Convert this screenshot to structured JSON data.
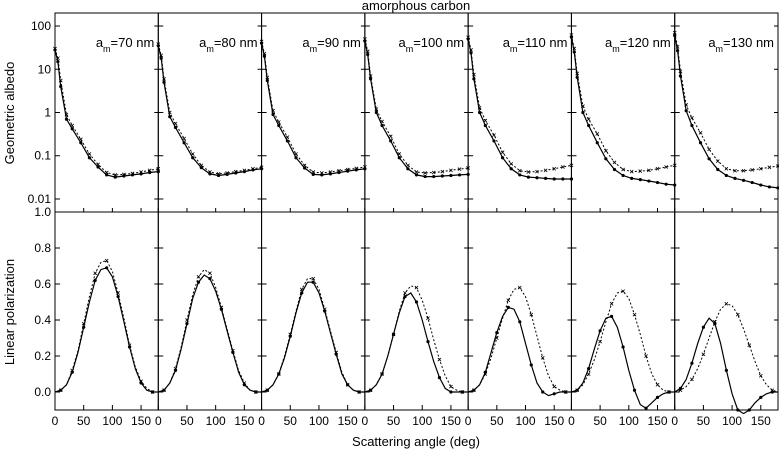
{
  "figure": {
    "title": "amorphous carbon",
    "xlabel": "Scattering angle (deg)",
    "ylabel_top": "Geometric albedo",
    "ylabel_bottom": "Linear polarization"
  },
  "chart_data": {
    "type": "line",
    "xlim": [
      0,
      180
    ],
    "x_ticks": [
      0,
      50,
      100,
      150
    ],
    "top_yscale": "log",
    "top_ylim": [
      0.005,
      200
    ],
    "top_y_ticks": [
      "100",
      "10",
      "1",
      "0.1",
      "0.01"
    ],
    "bottom_ylim": [
      -0.1,
      1.0
    ],
    "bottom_y_ticks": [
      "1.0",
      "0.8",
      "0.6",
      "0.4",
      "0.2",
      "0.0"
    ],
    "grid": false,
    "panels": [
      {
        "label_prefix": "a",
        "label_sub": "m",
        "label_value": "=70 nm",
        "albedo_x": [
          0,
          5,
          10,
          20,
          30,
          45,
          60,
          75,
          90,
          105,
          120,
          135,
          150,
          165,
          180
        ],
        "albedo_solid": [
          28,
          15,
          4,
          0.7,
          0.42,
          0.2,
          0.09,
          0.055,
          0.036,
          0.032,
          0.034,
          0.036,
          0.038,
          0.041,
          0.043
        ],
        "albedo_dotted": [
          30,
          18,
          5.5,
          0.9,
          0.5,
          0.24,
          0.11,
          0.063,
          0.041,
          0.036,
          0.037,
          0.039,
          0.042,
          0.046,
          0.05
        ],
        "pol_x": [
          0,
          10,
          20,
          30,
          40,
          50,
          60,
          70,
          80,
          90,
          100,
          110,
          120,
          130,
          140,
          150,
          160,
          170,
          180
        ],
        "pol_solid": [
          0,
          0.01,
          0.04,
          0.11,
          0.22,
          0.36,
          0.5,
          0.62,
          0.68,
          0.69,
          0.64,
          0.53,
          0.39,
          0.25,
          0.13,
          0.05,
          0.01,
          0,
          0
        ],
        "pol_dotted": [
          0,
          0.01,
          0.04,
          0.12,
          0.23,
          0.38,
          0.53,
          0.66,
          0.72,
          0.73,
          0.67,
          0.55,
          0.41,
          0.26,
          0.14,
          0.06,
          0.02,
          0,
          0
        ]
      },
      {
        "label_prefix": "a",
        "label_sub": "m",
        "label_value": "=80 nm",
        "albedo_x": [
          0,
          5,
          10,
          20,
          30,
          45,
          60,
          75,
          90,
          105,
          120,
          135,
          150,
          165,
          180
        ],
        "albedo_solid": [
          35,
          18,
          5,
          0.8,
          0.45,
          0.2,
          0.09,
          0.053,
          0.038,
          0.035,
          0.037,
          0.04,
          0.043,
          0.047,
          0.05
        ],
        "albedo_dotted": [
          38,
          21,
          6,
          1,
          0.55,
          0.25,
          0.11,
          0.06,
          0.042,
          0.038,
          0.04,
          0.043,
          0.046,
          0.05,
          0.054
        ],
        "pol_x": [
          0,
          10,
          20,
          30,
          40,
          50,
          60,
          70,
          80,
          90,
          100,
          110,
          120,
          130,
          140,
          150,
          160,
          170,
          180
        ],
        "pol_solid": [
          0,
          0.01,
          0.05,
          0.12,
          0.24,
          0.38,
          0.52,
          0.61,
          0.65,
          0.63,
          0.56,
          0.46,
          0.34,
          0.22,
          0.11,
          0.04,
          0.01,
          0,
          0
        ],
        "pol_dotted": [
          0,
          0.01,
          0.05,
          0.13,
          0.25,
          0.4,
          0.54,
          0.64,
          0.68,
          0.66,
          0.58,
          0.47,
          0.35,
          0.23,
          0.12,
          0.05,
          0.01,
          0,
          0
        ]
      },
      {
        "label_prefix": "a",
        "label_sub": "m",
        "label_value": "=90 nm",
        "albedo_x": [
          0,
          5,
          10,
          20,
          30,
          45,
          60,
          75,
          90,
          105,
          120,
          135,
          150,
          165,
          180
        ],
        "albedo_solid": [
          40,
          20,
          5.5,
          0.9,
          0.5,
          0.22,
          0.09,
          0.052,
          0.037,
          0.036,
          0.038,
          0.041,
          0.044,
          0.047,
          0.05
        ],
        "albedo_dotted": [
          44,
          23,
          6.5,
          1.1,
          0.6,
          0.27,
          0.11,
          0.06,
          0.042,
          0.04,
          0.042,
          0.045,
          0.048,
          0.051,
          0.055
        ],
        "pol_x": [
          0,
          10,
          20,
          30,
          40,
          50,
          60,
          70,
          80,
          90,
          100,
          110,
          120,
          130,
          140,
          150,
          160,
          170,
          180
        ],
        "pol_solid": [
          0,
          0.01,
          0.04,
          0.1,
          0.19,
          0.31,
          0.44,
          0.55,
          0.61,
          0.61,
          0.55,
          0.45,
          0.33,
          0.21,
          0.1,
          0.04,
          0.01,
          0,
          0
        ],
        "pol_dotted": [
          0,
          0.01,
          0.04,
          0.1,
          0.2,
          0.32,
          0.45,
          0.57,
          0.63,
          0.63,
          0.57,
          0.46,
          0.34,
          0.22,
          0.11,
          0.04,
          0.01,
          0,
          0
        ]
      },
      {
        "label_prefix": "a",
        "label_sub": "m",
        "label_value": "=100 nm",
        "albedo_x": [
          0,
          5,
          10,
          20,
          30,
          45,
          60,
          75,
          90,
          105,
          120,
          135,
          150,
          165,
          180
        ],
        "albedo_solid": [
          45,
          22,
          6,
          1,
          0.5,
          0.22,
          0.09,
          0.05,
          0.036,
          0.033,
          0.033,
          0.034,
          0.035,
          0.036,
          0.037
        ],
        "albedo_dotted": [
          50,
          26,
          7,
          1.2,
          0.62,
          0.28,
          0.11,
          0.06,
          0.042,
          0.04,
          0.041,
          0.043,
          0.046,
          0.049,
          0.052
        ],
        "pol_x": [
          0,
          10,
          20,
          30,
          40,
          50,
          60,
          70,
          80,
          90,
          100,
          110,
          120,
          130,
          140,
          150,
          160,
          170,
          180
        ],
        "pol_solid": [
          0,
          0.01,
          0.04,
          0.1,
          0.2,
          0.32,
          0.44,
          0.53,
          0.55,
          0.5,
          0.4,
          0.28,
          0.17,
          0.08,
          0.02,
          0,
          0,
          0,
          0
        ],
        "pol_dotted": [
          0,
          0.01,
          0.04,
          0.1,
          0.2,
          0.32,
          0.45,
          0.55,
          0.59,
          0.58,
          0.51,
          0.41,
          0.29,
          0.18,
          0.09,
          0.03,
          0.01,
          0,
          0
        ]
      },
      {
        "label_prefix": "a",
        "label_sub": "m",
        "label_value": "=110 nm",
        "albedo_x": [
          0,
          5,
          10,
          20,
          30,
          45,
          60,
          75,
          90,
          105,
          120,
          135,
          150,
          165,
          180
        ],
        "albedo_solid": [
          50,
          24,
          6,
          1,
          0.5,
          0.22,
          0.09,
          0.05,
          0.036,
          0.032,
          0.031,
          0.03,
          0.029,
          0.029,
          0.029
        ],
        "albedo_dotted": [
          55,
          28,
          7.5,
          1.3,
          0.65,
          0.3,
          0.12,
          0.065,
          0.045,
          0.042,
          0.043,
          0.046,
          0.05,
          0.055,
          0.06
        ],
        "pol_x": [
          0,
          10,
          20,
          30,
          40,
          50,
          60,
          70,
          80,
          90,
          100,
          110,
          120,
          130,
          140,
          150,
          160,
          170,
          180
        ],
        "pol_solid": [
          0,
          0.01,
          0.04,
          0.11,
          0.22,
          0.33,
          0.42,
          0.47,
          0.46,
          0.39,
          0.27,
          0.15,
          0.05,
          0,
          -0.02,
          -0.01,
          0,
          0,
          0
        ],
        "pol_dotted": [
          0,
          0.01,
          0.04,
          0.1,
          0.19,
          0.3,
          0.41,
          0.51,
          0.57,
          0.58,
          0.53,
          0.43,
          0.31,
          0.19,
          0.09,
          0.03,
          0.01,
          0,
          0
        ]
      },
      {
        "label_prefix": "a",
        "label_sub": "m",
        "label_value": "=120 nm",
        "albedo_x": [
          0,
          5,
          10,
          20,
          30,
          45,
          60,
          75,
          90,
          105,
          120,
          135,
          150,
          165,
          180
        ],
        "albedo_solid": [
          55,
          25,
          6.5,
          1,
          0.5,
          0.2,
          0.085,
          0.048,
          0.035,
          0.03,
          0.028,
          0.026,
          0.024,
          0.022,
          0.021
        ],
        "albedo_dotted": [
          62,
          30,
          8,
          1.4,
          0.7,
          0.32,
          0.13,
          0.07,
          0.048,
          0.043,
          0.044,
          0.046,
          0.05,
          0.055,
          0.06
        ],
        "pol_x": [
          0,
          10,
          20,
          30,
          40,
          50,
          60,
          70,
          80,
          90,
          100,
          110,
          120,
          130,
          140,
          150,
          160,
          170,
          180
        ],
        "pol_solid": [
          0,
          0.01,
          0.05,
          0.13,
          0.24,
          0.34,
          0.41,
          0.42,
          0.36,
          0.25,
          0.12,
          0.01,
          -0.07,
          -0.09,
          -0.06,
          -0.03,
          -0.01,
          0,
          0
        ],
        "pol_dotted": [
          0,
          0.01,
          0.04,
          0.1,
          0.18,
          0.28,
          0.39,
          0.49,
          0.55,
          0.56,
          0.52,
          0.43,
          0.32,
          0.2,
          0.1,
          0.04,
          0.01,
          0,
          0
        ]
      },
      {
        "label_prefix": "a",
        "label_sub": "m",
        "label_value": "=130 nm",
        "albedo_x": [
          0,
          5,
          10,
          20,
          30,
          45,
          60,
          75,
          90,
          105,
          120,
          135,
          150,
          165,
          180
        ],
        "albedo_solid": [
          60,
          27,
          7,
          1.1,
          0.5,
          0.2,
          0.085,
          0.048,
          0.035,
          0.03,
          0.027,
          0.024,
          0.021,
          0.019,
          0.018
        ],
        "albedo_dotted": [
          70,
          33,
          9,
          1.5,
          0.75,
          0.34,
          0.14,
          0.075,
          0.05,
          0.045,
          0.045,
          0.047,
          0.05,
          0.054,
          0.058
        ],
        "pol_x": [
          0,
          10,
          20,
          30,
          40,
          50,
          60,
          70,
          80,
          90,
          100,
          110,
          120,
          130,
          140,
          150,
          160,
          170,
          180
        ],
        "pol_solid": [
          0,
          0.02,
          0.07,
          0.16,
          0.27,
          0.36,
          0.41,
          0.38,
          0.27,
          0.12,
          -0.01,
          -0.1,
          -0.12,
          -0.1,
          -0.06,
          -0.03,
          -0.01,
          0,
          0
        ],
        "pol_dotted": [
          0,
          0.01,
          0.03,
          0.07,
          0.13,
          0.21,
          0.3,
          0.39,
          0.46,
          0.49,
          0.48,
          0.43,
          0.35,
          0.26,
          0.17,
          0.09,
          0.04,
          0.01,
          0
        ]
      }
    ]
  }
}
